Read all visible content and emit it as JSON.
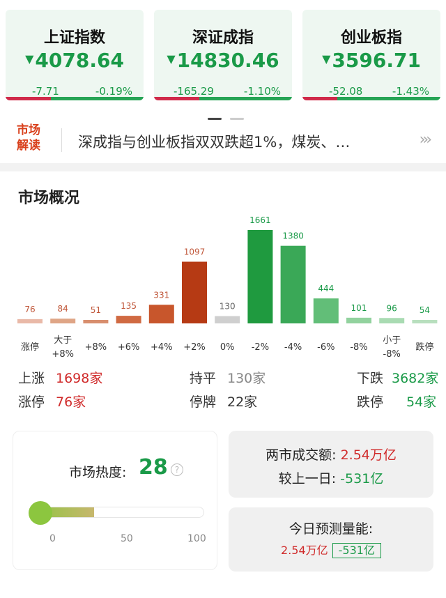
{
  "indices": [
    {
      "name": "上证指数",
      "price": "4078.64",
      "change": "-7.71",
      "pct": "-0.19%"
    },
    {
      "name": "深证成指",
      "price": "14830.46",
      "change": "-165.29",
      "pct": "-1.10%"
    },
    {
      "name": "创业板指",
      "price": "3596.71",
      "change": "-52.08",
      "pct": "-1.43%"
    }
  ],
  "banner": {
    "badge_line1": "市场",
    "badge_line2": "解读",
    "text": "深成指与创业板指双双跌超1%，煤炭、…",
    "more_icon": "triple-chevron-right"
  },
  "market": {
    "title": "市场概况",
    "stats": {
      "up_label": "上涨",
      "up_value": "1698家",
      "flat_label": "持平",
      "flat_value": "130家",
      "down_label": "下跌",
      "down_value": "3682家",
      "limit_up_label": "涨停",
      "limit_up_value": "76家",
      "halt_label": "停牌",
      "halt_value": "22家",
      "limit_down_label": "跌停",
      "limit_down_value": "54家"
    }
  },
  "chart_data": {
    "type": "bar",
    "categories": [
      "涨停",
      "大于\n+8%",
      "+8%",
      "+6%",
      "+4%",
      "+2%",
      "0%",
      "-2%",
      "-4%",
      "-6%",
      "-8%",
      "小于\n-8%",
      "跌停"
    ],
    "values": [
      76,
      84,
      51,
      135,
      331,
      1097,
      130,
      1661,
      1380,
      444,
      101,
      96,
      54
    ],
    "colors": [
      "#e9b9a8",
      "#dfa586",
      "#d88e6e",
      "#d06a42",
      "#c8562c",
      "#b63a14",
      "#cfcfcf",
      "#1f9a3f",
      "#3aa857",
      "#62be78",
      "#92d29e",
      "#a9dbb2",
      "#b8dfbe"
    ],
    "label_colors": [
      "#c0573a",
      "#c0573a",
      "#c0573a",
      "#c0573a",
      "#c0573a",
      "#c0573a",
      "#666666",
      "#1a9a48",
      "#1a9a48",
      "#1a9a48",
      "#1a9a48",
      "#1a9a48",
      "#1a9a48"
    ]
  },
  "heat": {
    "label": "市场热度:",
    "value": "28",
    "help_icon": "?",
    "level": 28,
    "ticks": [
      "0",
      "50",
      "100"
    ]
  },
  "volume": {
    "line1_label": "两市成交额:",
    "line1_value": "2.54万亿",
    "line2_label": "较上一日:",
    "line2_value": "-531亿",
    "pred_label": "今日预测量能:",
    "pred_value": "2.54万亿",
    "pred_diff": "-531亿"
  },
  "colors": {
    "up": "#d02a2a",
    "down": "#1a9a48"
  }
}
